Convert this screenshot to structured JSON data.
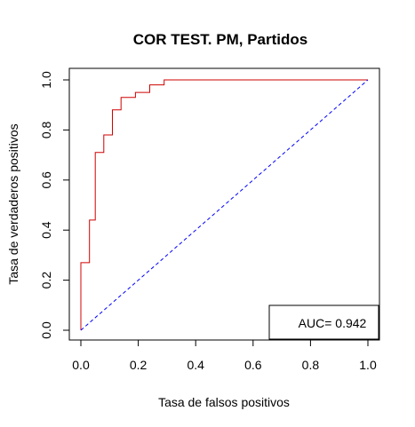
{
  "chart_data": {
    "type": "line",
    "title": "COR TEST. PM, Partidos",
    "xlabel": "Tasa de falsos positivos",
    "ylabel": "Tasa de verdaderos positivos",
    "xlim": [
      0,
      1
    ],
    "ylim": [
      0,
      1
    ],
    "x_ticks": [
      "0.0",
      "0.2",
      "0.4",
      "0.6",
      "0.8",
      "1.0"
    ],
    "y_ticks": [
      "0.0",
      "0.2",
      "0.4",
      "0.6",
      "0.8",
      "1.0"
    ],
    "grid": false,
    "series": [
      {
        "color": "#d00000",
        "style": "step",
        "x": [
          0.0,
          0.0,
          0.03,
          0.03,
          0.05,
          0.05,
          0.08,
          0.08,
          0.11,
          0.11,
          0.14,
          0.14,
          0.19,
          0.19,
          0.24,
          0.24,
          0.29,
          0.29,
          1.0
        ],
        "y": [
          0.0,
          0.27,
          0.27,
          0.44,
          0.44,
          0.71,
          0.71,
          0.78,
          0.78,
          0.88,
          0.88,
          0.93,
          0.93,
          0.95,
          0.95,
          0.98,
          0.98,
          1.0,
          1.0
        ]
      },
      {
        "color": "#0000ff",
        "style": "dashed",
        "x": [
          0.0,
          1.0
        ],
        "y": [
          0.0,
          1.0
        ]
      }
    ],
    "annotation": "AUC= 0.942"
  },
  "colors": {
    "roc_curve": "#d00000",
    "diagonal": "#0000ff"
  }
}
